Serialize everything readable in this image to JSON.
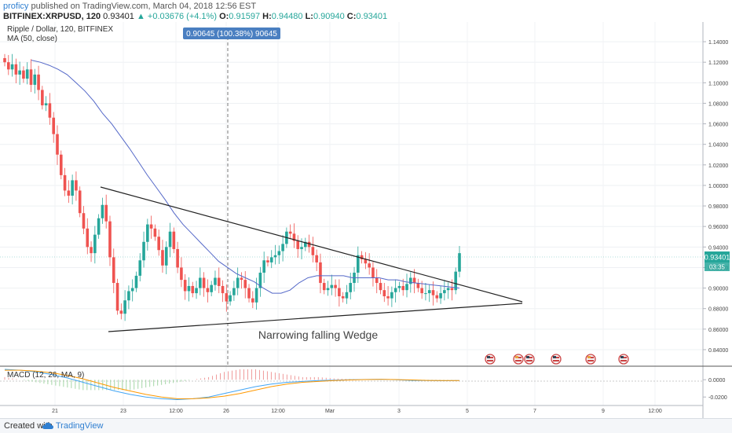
{
  "header": {
    "author": "proficy",
    "published": "published on TradingView.com, March 04, 2018 12:56 EST",
    "symbol": "BITFINEX:XRPUSD, 120",
    "last": "0.93401",
    "change": "▲ +0.03676 (+4.1%)",
    "o_label": "O:",
    "o": "0.91597",
    "h_label": "H:",
    "h": "0.94480",
    "l_label": "L:",
    "l": "0.90940",
    "c_label": "C:",
    "c": "0.93401"
  },
  "legend": {
    "title": "Ripple / Dollar, 120, BITFINEX",
    "ma": "MA (50, close)",
    "macd": "MACD (12, 26, MA, 9)"
  },
  "crosshair": {
    "label": "0.90645 (100.38%) 90645"
  },
  "annotation": "Narrowing falling Wedge",
  "price_badge": {
    "value": "0.93401",
    "countdown": "03:35"
  },
  "footer": {
    "created": "Created with",
    "brand": "TradingView"
  },
  "colors": {
    "up": "#26a69a",
    "down": "#ef5350",
    "ma": "#5468c8",
    "macd": "#42a5f5",
    "signal": "#ff9800",
    "trendline": "#222222",
    "badge": "#26a69a"
  },
  "chart_data": [
    {
      "type": "candlestick",
      "title": "Ripple / Dollar, 120, BITFINEX",
      "ylim": [
        0.83,
        1.15
      ],
      "y_ticks": [
        "1.14000",
        "1.12000",
        "1.10000",
        "1.08000",
        "1.06000",
        "1.04000",
        "1.02000",
        "1.00000",
        "0.98000",
        "0.96000",
        "0.94000",
        "0.92000",
        "0.90000",
        "0.88000",
        "0.86000",
        "0.84000"
      ],
      "x_ticks": [
        "21",
        "23",
        "12:00",
        "26",
        "12:00",
        "Mar",
        "3",
        "5",
        "7",
        "9",
        "12:00"
      ],
      "close_series": [
        1.12,
        1.113,
        1.118,
        1.108,
        1.112,
        1.104,
        1.113,
        1.098,
        1.108,
        1.093,
        1.078,
        1.08,
        1.066,
        1.05,
        1.03,
        1.01,
        0.995,
        0.99,
        1.005,
        0.995,
        0.973,
        0.958,
        0.94,
        0.934,
        0.952,
        0.968,
        0.981,
        0.965,
        0.93,
        0.905,
        0.878,
        0.875,
        0.888,
        0.897,
        0.9,
        0.912,
        0.927,
        0.945,
        0.962,
        0.958,
        0.95,
        0.937,
        0.922,
        0.94,
        0.955,
        0.938,
        0.92,
        0.908,
        0.897,
        0.902,
        0.895,
        0.9,
        0.91,
        0.9,
        0.896,
        0.903,
        0.91,
        0.902,
        0.895,
        0.887,
        0.893,
        0.9,
        0.91,
        0.908,
        0.9,
        0.89,
        0.886,
        0.9,
        0.915,
        0.927,
        0.925,
        0.93,
        0.932,
        0.936,
        0.943,
        0.955,
        0.953,
        0.946,
        0.938,
        0.94,
        0.945,
        0.94,
        0.932,
        0.925,
        0.905,
        0.898,
        0.9,
        0.903,
        0.9,
        0.892,
        0.89,
        0.896,
        0.905,
        0.915,
        0.932,
        0.928,
        0.924,
        0.92,
        0.91,
        0.905,
        0.898,
        0.892,
        0.89,
        0.896,
        0.9,
        0.902,
        0.898,
        0.904,
        0.91,
        0.905,
        0.9,
        0.895,
        0.895,
        0.898,
        0.893,
        0.89,
        0.895,
        0.898,
        0.9,
        0.898,
        0.916,
        0.934
      ],
      "ma_50": [
        1.122,
        1.12,
        1.117,
        1.113,
        1.108,
        1.1,
        1.092,
        1.082,
        1.07,
        1.06,
        1.048,
        1.036,
        1.023,
        1.01,
        0.998,
        0.986,
        0.973,
        0.962,
        0.953,
        0.944,
        0.935,
        0.926,
        0.92,
        0.914,
        0.91,
        0.906,
        0.9,
        0.895,
        0.895,
        0.898,
        0.905,
        0.91,
        0.912,
        0.912,
        0.912,
        0.912,
        0.91,
        0.91,
        0.91,
        0.91,
        0.908,
        0.908,
        0.906,
        0.905,
        0.904,
        0.903,
        0.902,
        0.901,
        0.9
      ]
    },
    {
      "type": "line",
      "title": "MACD (12, 26, MA, 9)",
      "ylim": [
        -0.028,
        0.012
      ],
      "y_ticks": [
        "0.0000",
        "-0.0200"
      ],
      "series": [
        {
          "values": [
            0.012,
            0.011,
            0.009,
            0.006,
            0.002,
            -0.003,
            -0.008,
            -0.013,
            -0.017,
            -0.02,
            -0.022,
            -0.023,
            -0.022,
            -0.02,
            -0.016,
            -0.012,
            -0.008,
            -0.005,
            -0.003,
            -0.002,
            -0.001,
            -0.0005,
            0,
            0.0003,
            0.0005,
            0,
            -0.0008,
            -0.001,
            -0.0012,
            -0.001
          ]
        },
        {
          "values": [
            0.011,
            0.011,
            0.01,
            0.008,
            0.005,
            0.001,
            -0.004,
            -0.009,
            -0.013,
            -0.017,
            -0.02,
            -0.022,
            -0.022,
            -0.021,
            -0.019,
            -0.016,
            -0.012,
            -0.008,
            -0.005,
            -0.003,
            -0.002,
            -0.001,
            -0.0003,
            0.0002,
            0.0004,
            0.0002,
            -0.0003,
            -0.0008,
            -0.001,
            -0.001
          ]
        }
      ]
    }
  ]
}
